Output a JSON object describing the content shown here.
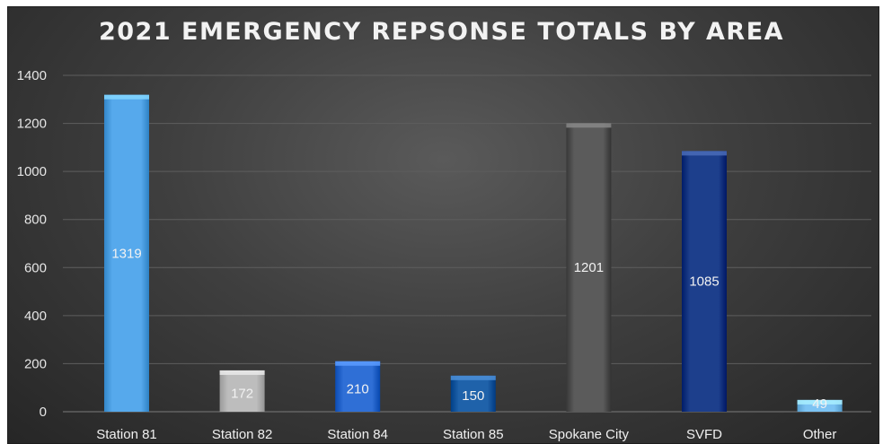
{
  "chart_data": {
    "type": "bar",
    "title": "2021 EMERGENCY REPSONSE TOTALS BY AREA",
    "xlabel": "",
    "ylabel": "",
    "categories": [
      "Station 81",
      "Station 82",
      "Station 84",
      "Station 85",
      "Spokane City",
      "SVFD",
      "Other"
    ],
    "values": [
      1319,
      172,
      210,
      150,
      1201,
      1085,
      49
    ],
    "data_labels": [
      "1319",
      "172",
      "210",
      "150",
      "1201",
      "1085",
      "49"
    ],
    "bar_colors": [
      "#56a9ec",
      "#bdbdbd",
      "#2f6fd6",
      "#1f62aa",
      "#5b5b5b",
      "#1d3f8c",
      "#7cc3f3"
    ],
    "ylim": [
      0,
      1400
    ],
    "yticks": [
      0,
      200,
      400,
      600,
      800,
      1000,
      1200,
      1400
    ],
    "grid": true,
    "legend": "none",
    "background": "#3a3a3a"
  }
}
